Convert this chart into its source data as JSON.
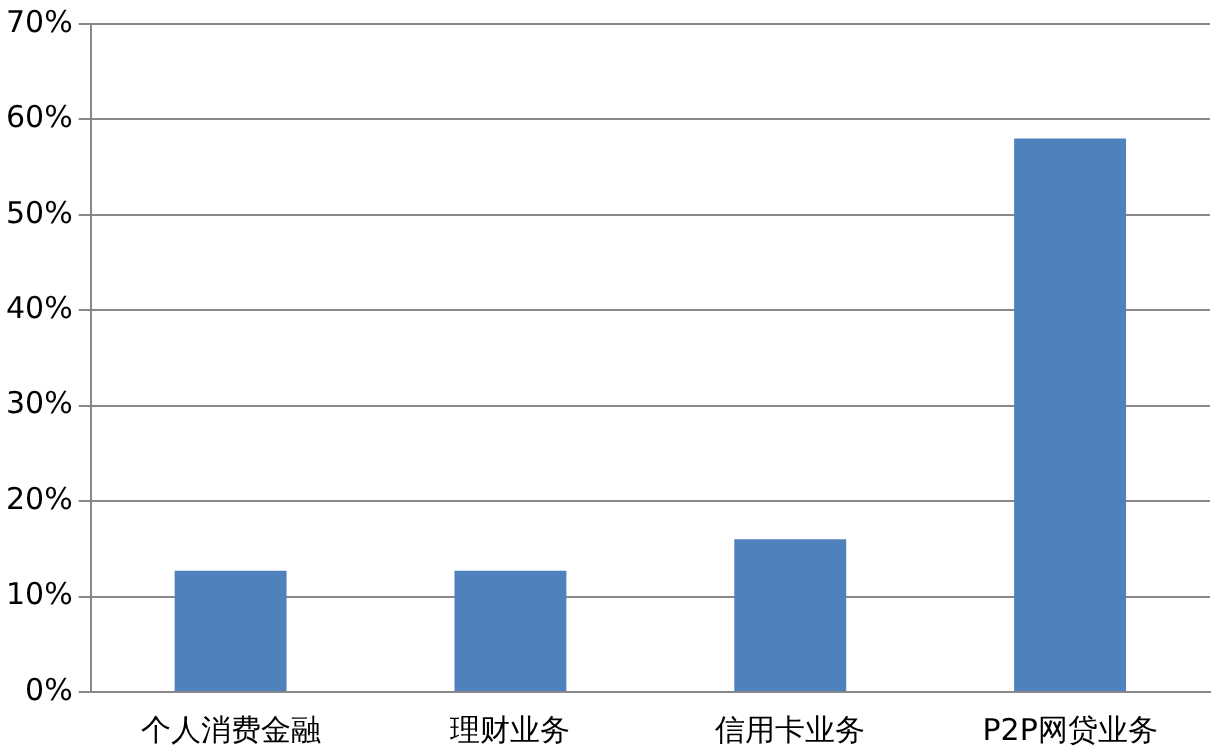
{
  "chart_data": {
    "type": "bar",
    "categories": [
      "个人消费金融",
      "理财业务",
      "信用卡业务",
      "P2P网贷业务"
    ],
    "values": [
      12.7,
      12.7,
      16,
      58
    ],
    "color": "#4f81bd",
    "ylim": [
      0,
      70
    ],
    "yticks": [
      {
        "value": 0,
        "label": "0%"
      },
      {
        "value": 10,
        "label": "10%"
      },
      {
        "value": 20,
        "label": "20%"
      },
      {
        "value": 30,
        "label": "30%"
      },
      {
        "value": 40,
        "label": "40%"
      },
      {
        "value": 50,
        "label": "50%"
      },
      {
        "value": 60,
        "label": "60%"
      },
      {
        "value": 70,
        "label": "70%"
      }
    ],
    "grid": "y",
    "legend": false
  }
}
